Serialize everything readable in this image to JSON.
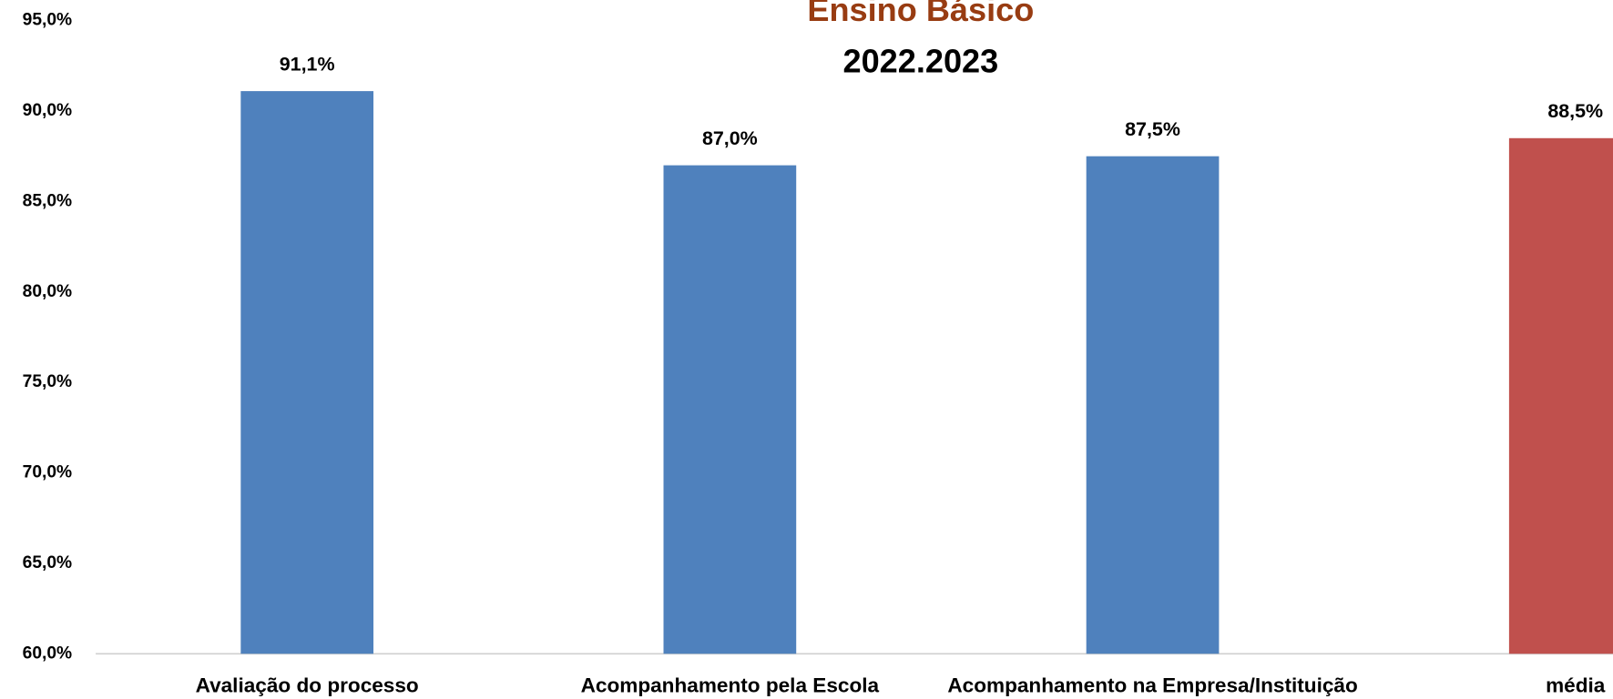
{
  "chart_data": {
    "type": "bar",
    "title": "Ensino Básico",
    "subtitle": "2022.2023",
    "categories": [
      "Avaliação do processo",
      "Acompanhamento pela Escola",
      "Acompanhamento na Empresa/Instituição",
      "média"
    ],
    "values": [
      91.1,
      87.0,
      87.5,
      88.5
    ],
    "value_labels": [
      "91,1%",
      "87,0%",
      "87,5%",
      "88,5%"
    ],
    "colors": [
      "#4f81bd",
      "#4f81bd",
      "#4f81bd",
      "#c0504d"
    ],
    "ylim": [
      60,
      95
    ],
    "yticks": [
      {
        "value": 60,
        "label": "60,0%"
      },
      {
        "value": 65,
        "label": "65,0%"
      },
      {
        "value": 70,
        "label": "70,0%"
      },
      {
        "value": 75,
        "label": "75,0%"
      },
      {
        "value": 80,
        "label": "80,0%"
      },
      {
        "value": 85,
        "label": "85,0%"
      },
      {
        "value": 90,
        "label": "90,0%"
      },
      {
        "value": 95,
        "label": "95,0%"
      }
    ],
    "grid": false
  }
}
